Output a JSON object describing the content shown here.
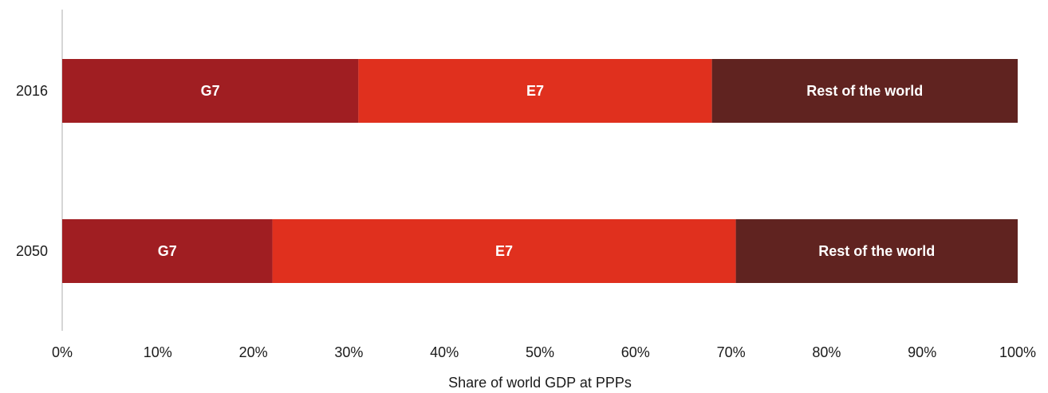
{
  "chart_data": {
    "type": "bar",
    "orientation": "horizontal",
    "stacked": true,
    "categories": [
      "2016",
      "2050"
    ],
    "series": [
      {
        "name": "G7",
        "values": [
          31,
          22
        ],
        "color": "#A01E22"
      },
      {
        "name": "E7",
        "values": [
          37,
          48.5
        ],
        "color": "#E0301E"
      },
      {
        "name": "Rest of the world",
        "values": [
          32,
          29.5
        ],
        "color": "#602320"
      }
    ],
    "xlabel": "Share of world GDP at PPPs",
    "ylabel": "",
    "xlim": [
      0,
      100
    ],
    "x_ticks": [
      "0%",
      "10%",
      "20%",
      "30%",
      "40%",
      "50%",
      "60%",
      "70%",
      "80%",
      "90%",
      "100%"
    ],
    "grid": false,
    "legend": "none"
  }
}
